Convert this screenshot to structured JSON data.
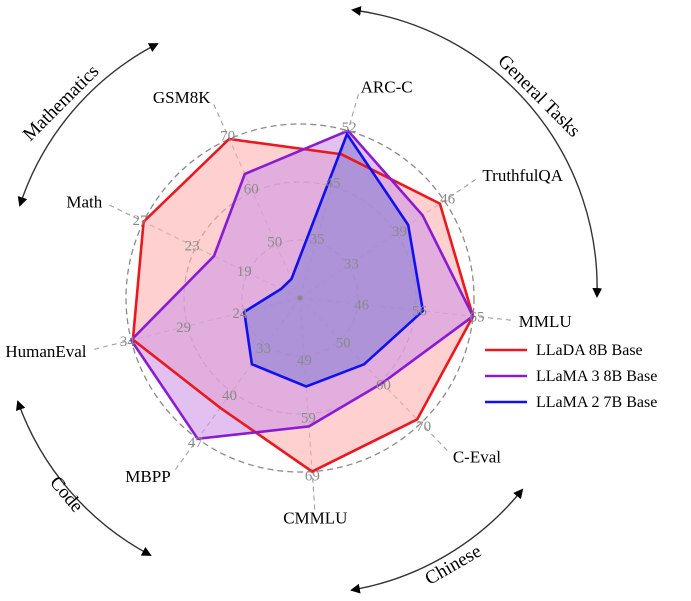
{
  "chart_data": {
    "type": "radar",
    "axes": [
      "ARC-C",
      "TruthfulQA",
      "MMLU",
      "C-Eval",
      "CMMLU",
      "MBPP",
      "HumanEval",
      "Math",
      "GSM8K"
    ],
    "axis_ticks": [
      [
        "35",
        "45",
        "52"
      ],
      [
        "33",
        "39",
        "46"
      ],
      [
        "46",
        "56",
        "65"
      ],
      [
        "50",
        "60",
        "70"
      ],
      [
        "49",
        "59",
        "69"
      ],
      [
        "33",
        "40",
        "47"
      ],
      [
        "24",
        "29",
        "34"
      ],
      [
        "19",
        "23",
        "27"
      ],
      [
        "50",
        "60",
        "70"
      ]
    ],
    "series": [
      {
        "name": "LLaDA 8B Base",
        "color": "#e8191f",
        "fill": "#ffb3b3",
        "values": [
          0.86,
          0.97,
          1.0,
          0.97,
          1.0,
          0.78,
          0.99,
          1.0,
          1.0
        ]
      },
      {
        "name": "LLaMA 3 8B Base",
        "color": "#8b1bd3",
        "fill": "#d099e6",
        "values": [
          1.0,
          0.85,
          1.0,
          0.68,
          0.74,
          1.0,
          1.0,
          0.55,
          0.78
        ]
      },
      {
        "name": "LLaMA 2 7B Base",
        "color": "#1111ee",
        "fill": "#8f82d6",
        "values": [
          0.98,
          0.75,
          0.71,
          0.53,
          0.51,
          0.47,
          0.33,
          0.12,
          0.12
        ]
      }
    ],
    "groups": [
      "General Tasks",
      "Chinese",
      "Code",
      "Mathematics"
    ],
    "legend": "right"
  }
}
